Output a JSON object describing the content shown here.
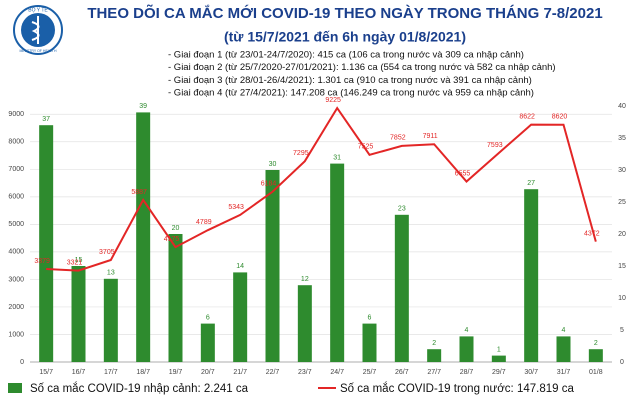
{
  "chart_data": {
    "type": "bar",
    "title": "THEO DÕI CA MẮC MỚI COVID-19 THEO NGÀY TRONG THÁNG 7-8/2021",
    "subtitle": "(từ 15/7/2021 đến 6h ngày 01/8/2021)",
    "logo_text": [
      "BỘ Y TẾ",
      "MINISTRY OF HEALTH"
    ],
    "notes": [
      "- Giai đoạn 1 (từ 23/01-24/7/2020): 415 ca (106 ca trong nước và 309 ca nhập cảnh)",
      "- Giai đoạn 2 (từ 25/7/2020-27/01/2021): 1.136 ca (554 ca trong nước và 582 ca nhập cảnh)",
      "- Giai đoạn 3 (từ 28/01-26/4/2021): 1.301 ca (910 ca trong nước và 391 ca nhập cảnh)",
      "- Giai đoạn 4 (từ 27/4/2021): 147.208 ca (146.249 ca trong nước và 959 ca nhập cảnh)"
    ],
    "categories": [
      "15/7",
      "16/7",
      "17/7",
      "18/7",
      "19/7",
      "20/7",
      "21/7",
      "22/7",
      "23/7",
      "24/7",
      "25/7",
      "26/7",
      "27/7",
      "28/7",
      "29/7",
      "30/7",
      "31/7",
      "01/8"
    ],
    "series": [
      {
        "name": "Số ca mắc COVID-19 nhập cảnh: 2.241 ca",
        "type": "bar",
        "axis": "y2",
        "color": "#2e8b2e",
        "values": [
          37,
          15,
          13,
          39,
          20,
          6,
          14,
          30,
          12,
          31,
          6,
          23,
          2,
          4,
          1,
          27,
          4,
          2
        ]
      },
      {
        "name": "Số ca mắc COVID-19 trong nước: 147.819 ca",
        "type": "line",
        "color": "#e32626",
        "values": [
          3379,
          3321,
          3705,
          5887,
          4175,
          4789,
          5343,
          6184,
          7295,
          9225,
          7525,
          7852,
          7911,
          6555,
          7593,
          8622,
          8620,
          4372
        ]
      }
    ],
    "ylim": [
      0,
      9300
    ],
    "yticks": [
      0,
      1000,
      2000,
      3000,
      4000,
      5000,
      6000,
      7000,
      8000,
      9000
    ],
    "y2lim": [
      0,
      40
    ],
    "y2ticks": [
      0,
      5,
      10,
      15,
      20,
      25,
      30,
      35,
      40
    ],
    "grid": true
  }
}
